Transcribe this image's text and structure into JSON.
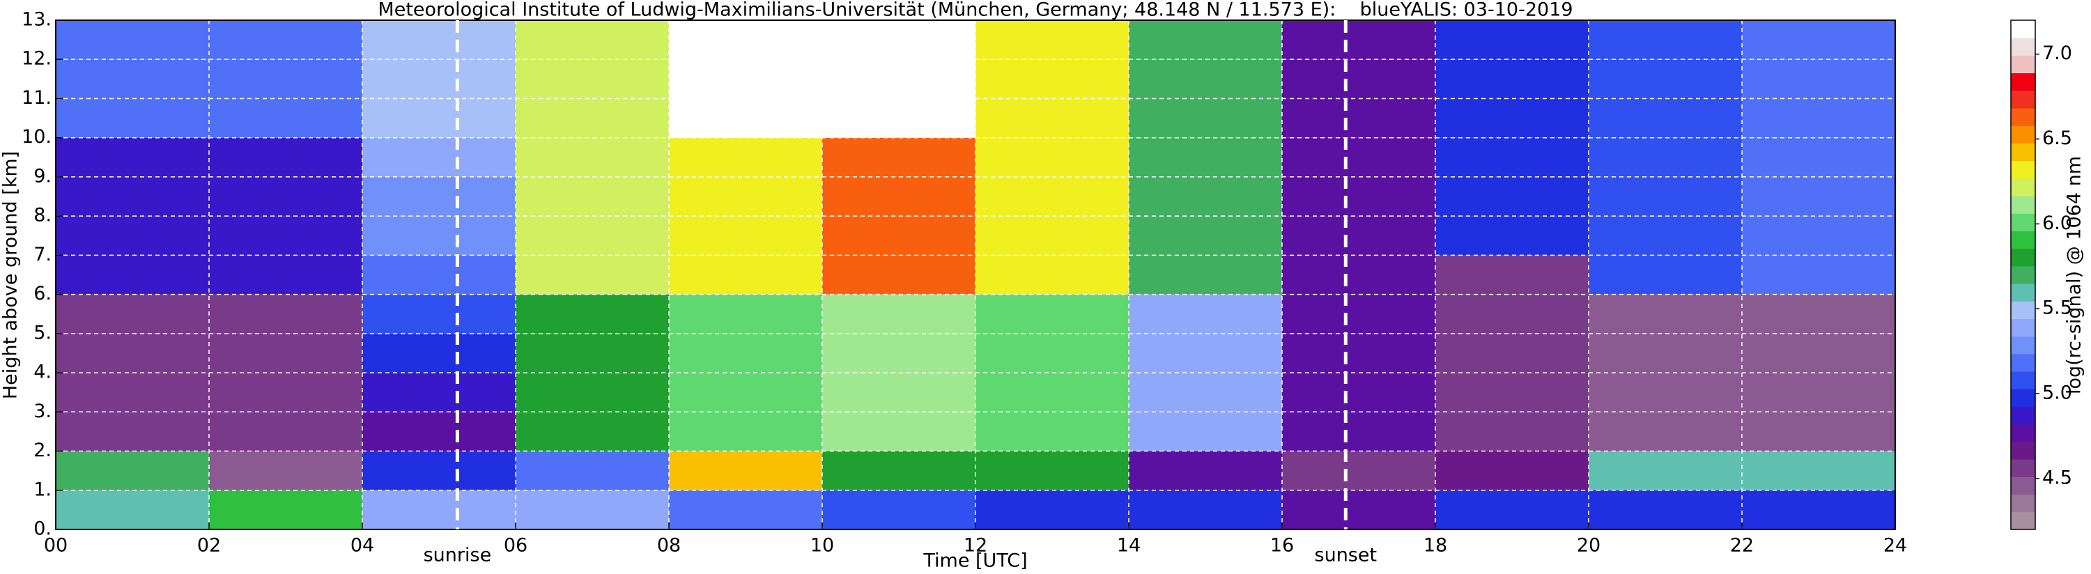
{
  "chart_data": {
    "type": "heatmap",
    "title": "Meteorological Institute of Ludwig-Maximilians-Universität (München, Germany; 48.148 N / 11.573 E):    blueYALIS: 03-10-2019",
    "xlabel": "Time [UTC]",
    "ylabel": "Height above ground [km]",
    "colorbar_label": "log(rc-signal) @ 1064 nm",
    "x_edges": [
      0,
      2,
      4,
      6,
      8,
      10,
      12,
      14,
      16,
      18,
      20,
      22,
      24
    ],
    "y_edges": [
      0,
      1,
      2,
      3,
      4,
      5,
      6,
      7,
      8,
      9,
      10,
      11,
      12,
      13
    ],
    "z": [
      [
        5.6,
        5.9,
        5.4,
        5.4,
        5.2,
        5.1,
        5.0,
        5.0,
        4.8,
        5.0,
        5.0,
        5.0
      ],
      [
        5.7,
        4.5,
        5.0,
        5.2,
        6.4,
        5.8,
        5.8,
        4.8,
        4.6,
        4.7,
        5.6,
        5.6
      ],
      [
        4.6,
        4.6,
        4.8,
        5.8,
        6.0,
        6.1,
        6.0,
        5.4,
        4.8,
        4.6,
        4.5,
        4.5
      ],
      [
        4.6,
        4.6,
        4.9,
        5.8,
        6.0,
        6.1,
        6.0,
        5.4,
        4.8,
        4.6,
        4.5,
        4.5
      ],
      [
        4.6,
        4.6,
        5.0,
        5.8,
        6.0,
        6.1,
        6.0,
        5.4,
        4.8,
        4.6,
        4.5,
        4.5
      ],
      [
        4.6,
        4.6,
        5.1,
        5.8,
        6.0,
        6.1,
        6.0,
        5.4,
        4.8,
        4.6,
        4.5,
        4.5
      ],
      [
        4.9,
        4.9,
        5.2,
        6.2,
        6.3,
        6.6,
        6.3,
        5.7,
        4.8,
        4.6,
        5.1,
        5.2
      ],
      [
        4.9,
        4.9,
        5.3,
        6.2,
        6.3,
        6.6,
        6.3,
        5.7,
        4.8,
        5.0,
        5.1,
        5.2
      ],
      [
        4.9,
        4.9,
        5.3,
        6.2,
        6.3,
        6.6,
        6.3,
        5.7,
        4.8,
        5.0,
        5.1,
        5.2
      ],
      [
        4.9,
        4.9,
        5.4,
        6.2,
        6.3,
        6.6,
        6.3,
        5.7,
        4.8,
        5.0,
        5.1,
        5.2
      ],
      [
        5.2,
        5.2,
        5.5,
        6.2,
        7.1,
        7.1,
        6.3,
        5.7,
        4.8,
        5.0,
        5.1,
        5.2
      ],
      [
        5.2,
        5.2,
        5.5,
        6.2,
        7.1,
        7.1,
        6.3,
        5.7,
        4.8,
        5.0,
        5.1,
        5.2
      ],
      [
        5.2,
        5.2,
        5.5,
        6.2,
        7.1,
        7.1,
        6.3,
        5.7,
        4.8,
        5.0,
        5.1,
        5.2
      ]
    ],
    "colormap": [
      "#a890a0",
      "#9a7898",
      "#8a5a90",
      "#7a3a8a",
      "#6a1a88",
      "#5a10a0",
      "#3818c8",
      "#2030e0",
      "#3050f0",
      "#5070f8",
      "#7090fa",
      "#90a8fa",
      "#a8c0f8",
      "#60c0b0",
      "#40b060",
      "#20a030",
      "#30c040",
      "#60d870",
      "#a0e890",
      "#d0f060",
      "#f0f020",
      "#f8c000",
      "#f89000",
      "#f86010",
      "#f03020",
      "#f00010",
      "#f0c0c0",
      "#ece0e0",
      "#ffffff"
    ],
    "clim": [
      4.2,
      7.2
    ],
    "cticks": [
      4.5,
      {
        "value": 5,
        "label": "5.0"
      },
      5.5,
      {
        "value": 6,
        "label": "6.0"
      },
      6.5,
      {
        "value": 7,
        "label": "7.0"
      }
    ],
    "xlim": [
      0,
      24
    ],
    "ylim": [
      0,
      13
    ],
    "xticks": [
      {
        "value": 0,
        "label": "00"
      },
      {
        "value": 2,
        "label": "02"
      },
      {
        "value": 4,
        "label": "04"
      },
      {
        "value": 6,
        "label": "06"
      },
      {
        "value": 8,
        "label": "08"
      },
      10,
      12,
      14,
      16,
      18,
      20,
      22,
      24
    ],
    "yticks": [
      {
        "value": 0,
        "label": "0."
      },
      {
        "value": 1,
        "label": "1."
      },
      {
        "value": 2,
        "label": "2."
      },
      {
        "value": 3,
        "label": "3."
      },
      {
        "value": 4,
        "label": "4."
      },
      {
        "value": 5,
        "label": "5."
      },
      {
        "value": 6,
        "label": "6."
      },
      {
        "value": 7,
        "label": "7."
      },
      {
        "value": 8,
        "label": "8."
      },
      {
        "value": 9,
        "label": "9."
      },
      {
        "value": 10,
        "label": "10."
      },
      {
        "value": 11,
        "label": "11."
      },
      {
        "value": 12,
        "label": "12."
      },
      {
        "value": 13,
        "label": "13."
      }
    ],
    "grid": true,
    "annotations": [
      {
        "text": "sunrise",
        "x": 5.24
      },
      {
        "text": "sunset",
        "x": 16.83
      }
    ]
  }
}
